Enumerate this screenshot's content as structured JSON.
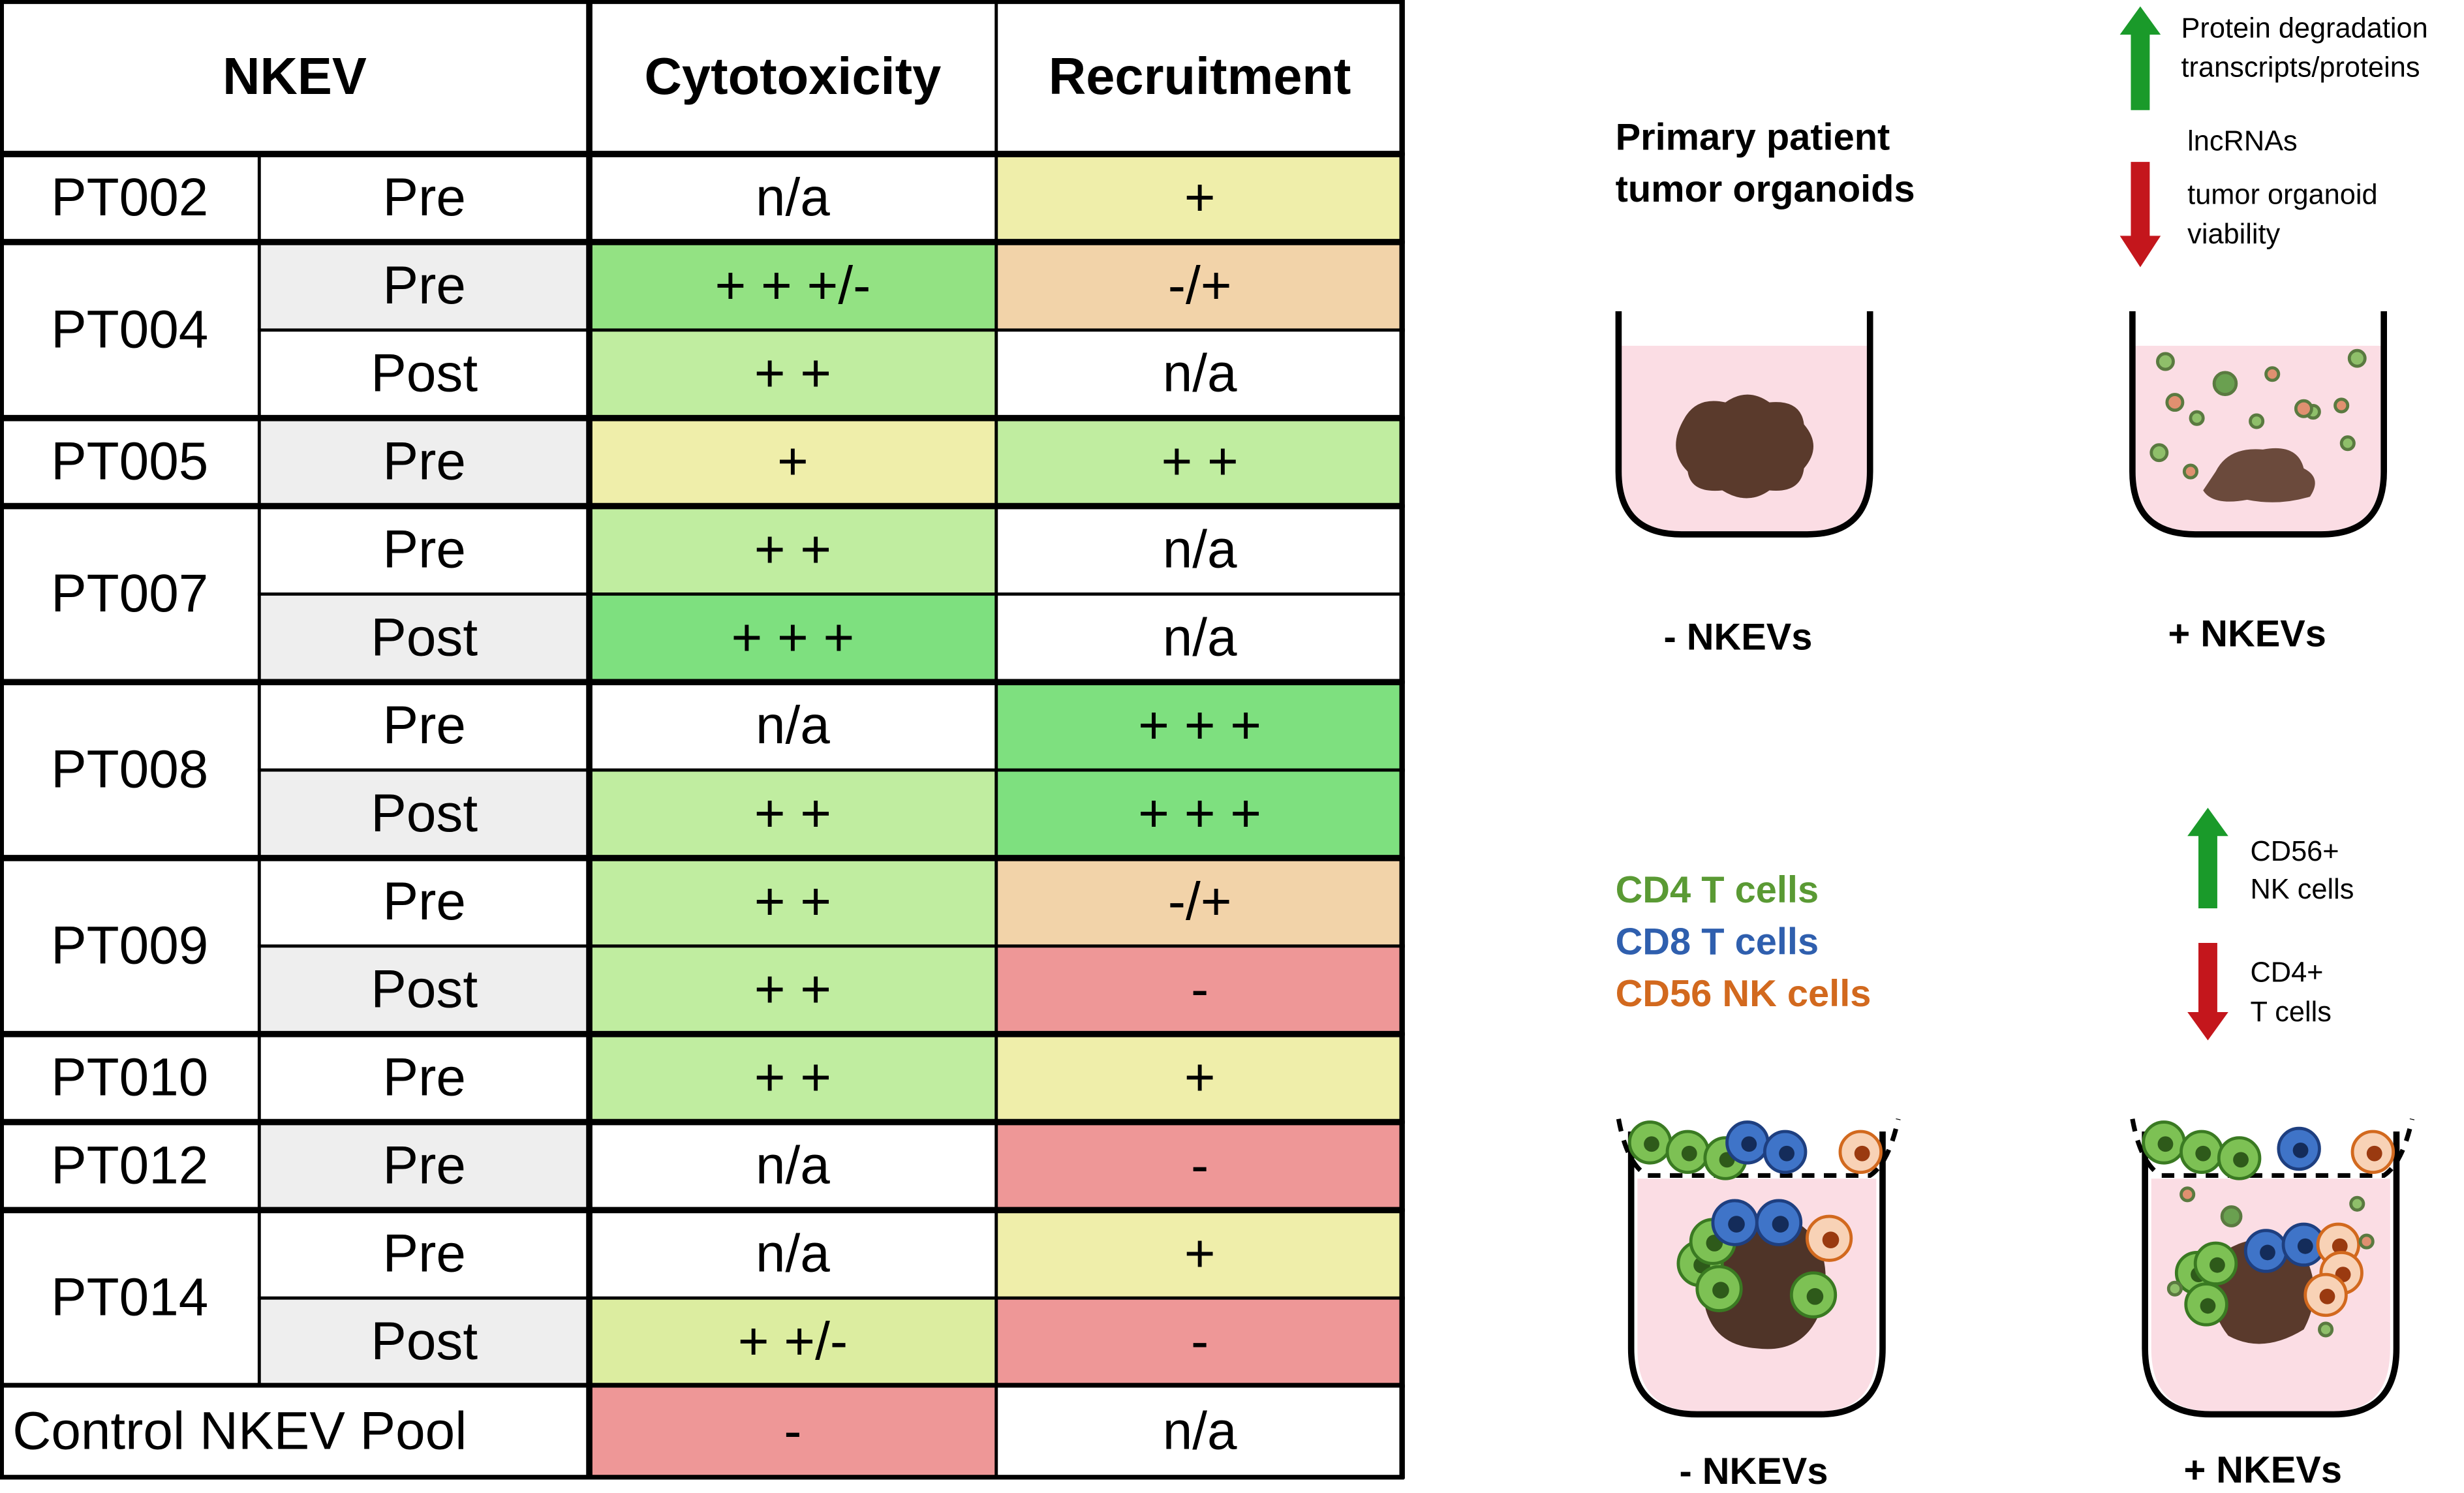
{
  "table": {
    "header": [
      "NKEV",
      "Cytotoxicity",
      "Recruitment"
    ],
    "groups": [
      {
        "patient": "PT002",
        "rows": [
          {
            "time": "Pre",
            "time_color": "#ffffff",
            "cytotoxicity": "n/a",
            "cytotoxicity_color": "#ffffff",
            "recruitment": "+",
            "recruitment_color": "#efeeaa"
          }
        ]
      },
      {
        "patient": "PT004",
        "rows": [
          {
            "time": "Pre",
            "time_color": "#eeeeee",
            "cytotoxicity": "+ + +/-",
            "cytotoxicity_color": "#93e283",
            "recruitment": "-/+",
            "recruitment_color": "#f2d3a9"
          },
          {
            "time": "Post",
            "time_color": "#ffffff",
            "cytotoxicity": "+ +",
            "cytotoxicity_color": "#c0eda0",
            "recruitment": "n/a",
            "recruitment_color": "#ffffff"
          }
        ]
      },
      {
        "patient": "PT005",
        "rows": [
          {
            "time": "Pre",
            "time_color": "#eeeeee",
            "cytotoxicity": "+",
            "cytotoxicity_color": "#efeeaa",
            "recruitment": "+ +",
            "recruitment_color": "#c0eda0"
          }
        ]
      },
      {
        "patient": "PT007",
        "rows": [
          {
            "time": "Pre",
            "time_color": "#ffffff",
            "cytotoxicity": "+ +",
            "cytotoxicity_color": "#c0eda0",
            "recruitment": "n/a",
            "recruitment_color": "#ffffff"
          },
          {
            "time": "Post",
            "time_color": "#eeeeee",
            "cytotoxicity": "+ + +",
            "cytotoxicity_color": "#7ee07f",
            "recruitment": "n/a",
            "recruitment_color": "#ffffff"
          }
        ]
      },
      {
        "patient": "PT008",
        "rows": [
          {
            "time": "Pre",
            "time_color": "#ffffff",
            "cytotoxicity": "n/a",
            "cytotoxicity_color": "#ffffff",
            "recruitment": "+ + +",
            "recruitment_color": "#7ee07f"
          },
          {
            "time": "Post",
            "time_color": "#eeeeee",
            "cytotoxicity": "+ +",
            "cytotoxicity_color": "#c0eda0",
            "recruitment": "+ + +",
            "recruitment_color": "#7ee07f"
          }
        ]
      },
      {
        "patient": "PT009",
        "rows": [
          {
            "time": "Pre",
            "time_color": "#ffffff",
            "cytotoxicity": "+ +",
            "cytotoxicity_color": "#c0eda0",
            "recruitment": "-/+",
            "recruitment_color": "#f2d3a9"
          },
          {
            "time": "Post",
            "time_color": "#eeeeee",
            "cytotoxicity": "+ +",
            "cytotoxicity_color": "#c0eda0",
            "recruitment": "-",
            "recruitment_color": "#ee9797"
          }
        ]
      },
      {
        "patient": "PT010",
        "rows": [
          {
            "time": "Pre",
            "time_color": "#ffffff",
            "cytotoxicity": "+ +",
            "cytotoxicity_color": "#c0eda0",
            "recruitment": "+",
            "recruitment_color": "#efeeaa"
          }
        ]
      },
      {
        "patient": "PT012",
        "rows": [
          {
            "time": "Pre",
            "time_color": "#eeeeee",
            "cytotoxicity": "n/a",
            "cytotoxicity_color": "#ffffff",
            "recruitment": "-",
            "recruitment_color": "#ee9797"
          }
        ]
      },
      {
        "patient": "PT014",
        "rows": [
          {
            "time": "Pre",
            "time_color": "#ffffff",
            "cytotoxicity": "n/a",
            "cytotoxicity_color": "#ffffff",
            "recruitment": "+",
            "recruitment_color": "#efeeaa"
          },
          {
            "time": "Post",
            "time_color": "#eeeeee",
            "cytotoxicity": "+ +/-",
            "cytotoxicity_color": "#dcedA0",
            "recruitment": "-",
            "recruitment_color": "#ee9797"
          }
        ]
      }
    ],
    "control": {
      "label": "Control NKEV Pool",
      "cytotoxicity": "-",
      "cytotoxicity_color": "#ee9797",
      "recruitment": "n/a",
      "recruitment_color": "#ffffff"
    }
  },
  "figure": {
    "organoid_title": [
      "Primary patient",
      "tumor organoids"
    ],
    "top_up": [
      "Protein degradation",
      "transcripts/proteins"
    ],
    "top_middle": "lncRNAs",
    "top_down": [
      "tumor organoid",
      "viability"
    ],
    "top_labels": [
      "- NKEVs",
      "+ NKEVs"
    ],
    "legend": [
      {
        "name": "CD4 T cells",
        "color": "#5a9a34"
      },
      {
        "name": "CD8 T cells",
        "color": "#2f5fae"
      },
      {
        "name": "CD56 NK cells",
        "color": "#d2691e"
      }
    ],
    "mid_up": [
      "CD56+",
      "NK cells"
    ],
    "mid_down": [
      "CD4+",
      "T cells"
    ],
    "bottom_labels": [
      "- NKEVs",
      "+ NKEVs"
    ]
  }
}
